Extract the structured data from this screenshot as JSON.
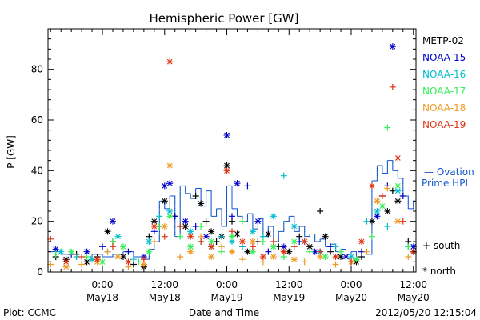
{
  "chart_data": {
    "type": "scatter",
    "title": "Hemispheric Power [GW]",
    "xlabel": "Date and Time",
    "ylabel": "P [GW]",
    "ylim": [
      0,
      96
    ],
    "xlim_hours": [
      -10.5,
      60.5
    ],
    "yticks": [
      0,
      20,
      40,
      60,
      80
    ],
    "xticks": [
      {
        "hour": 0,
        "top": "0:00",
        "bottom": "May18"
      },
      {
        "hour": 12,
        "top": "12:00",
        "bottom": "May18"
      },
      {
        "hour": 24,
        "top": "0:00",
        "bottom": "May19"
      },
      {
        "hour": 36,
        "top": "12:00",
        "bottom": "May19"
      },
      {
        "hour": 48,
        "top": "0:00",
        "bottom": "May20"
      },
      {
        "hour": 60,
        "top": "12:00",
        "bottom": "May20"
      }
    ],
    "footer_left": "Plot: CCMC",
    "footer_right": "2012/05/20 12:15:04",
    "marker_legend": {
      "south": "+ south",
      "north": "* north"
    },
    "series": [
      {
        "name": "METP-02",
        "color": "#000000",
        "points": [
          [
            -9,
            6,
            "+"
          ],
          [
            -7,
            5,
            "*"
          ],
          [
            -5,
            7,
            "+"
          ],
          [
            -3,
            4,
            "*"
          ],
          [
            -1,
            6,
            "+"
          ],
          [
            1,
            16,
            "*"
          ],
          [
            2,
            12,
            "+"
          ],
          [
            4,
            6,
            "*"
          ],
          [
            6,
            3,
            "+"
          ],
          [
            8,
            2,
            "*"
          ],
          [
            9,
            14,
            "+"
          ],
          [
            10,
            20,
            "*"
          ],
          [
            11,
            18,
            "+"
          ],
          [
            12,
            28,
            "*"
          ],
          [
            14,
            22,
            "+"
          ],
          [
            16,
            18,
            "*"
          ],
          [
            18,
            30,
            "+"
          ],
          [
            19,
            27,
            "*"
          ],
          [
            20,
            20,
            "+"
          ],
          [
            21,
            16,
            "*"
          ],
          [
            22,
            12,
            "+"
          ],
          [
            23,
            14,
            "*"
          ],
          [
            24,
            42,
            "*"
          ],
          [
            25,
            20,
            "+"
          ],
          [
            26,
            15,
            "*"
          ],
          [
            27,
            10,
            "+"
          ],
          [
            28,
            8,
            "*"
          ],
          [
            30,
            12,
            "+"
          ],
          [
            32,
            15,
            "*"
          ],
          [
            34,
            10,
            "+"
          ],
          [
            36,
            8,
            "*"
          ],
          [
            38,
            14,
            "+"
          ],
          [
            40,
            10,
            "*"
          ],
          [
            42,
            24,
            "+"
          ],
          [
            43,
            14,
            "*"
          ],
          [
            44,
            8,
            "+"
          ],
          [
            46,
            6,
            "*"
          ],
          [
            48,
            4,
            "+"
          ],
          [
            49,
            4,
            "*"
          ],
          [
            50,
            6,
            "+"
          ],
          [
            52,
            20,
            "*"
          ],
          [
            54,
            30,
            "+"
          ],
          [
            55,
            24,
            "*"
          ],
          [
            56,
            32,
            "+"
          ],
          [
            57,
            28,
            "*"
          ],
          [
            59,
            12,
            "+"
          ],
          [
            60,
            8,
            "*"
          ]
        ]
      },
      {
        "name": "NOAA-15",
        "color": "#0000cc",
        "points": [
          [
            -9,
            9,
            "*"
          ],
          [
            -6,
            7,
            "+"
          ],
          [
            -3,
            8,
            "*"
          ],
          [
            0,
            10,
            "+"
          ],
          [
            2,
            20,
            "*"
          ],
          [
            5,
            8,
            "+"
          ],
          [
            8,
            6,
            "*"
          ],
          [
            10,
            16,
            "+"
          ],
          [
            12,
            34,
            "*"
          ],
          [
            13,
            35,
            "*"
          ],
          [
            14,
            22,
            "+"
          ],
          [
            16,
            20,
            "*"
          ],
          [
            18,
            18,
            "+"
          ],
          [
            20,
            14,
            "*"
          ],
          [
            24,
            54,
            "*"
          ],
          [
            25,
            22,
            "+"
          ],
          [
            26,
            35,
            "*"
          ],
          [
            28,
            34,
            "+"
          ],
          [
            30,
            20,
            "*"
          ],
          [
            32,
            8,
            "+"
          ],
          [
            35,
            10,
            "*"
          ],
          [
            38,
            12,
            "+"
          ],
          [
            41,
            8,
            "*"
          ],
          [
            44,
            10,
            "+"
          ],
          [
            47,
            6,
            "*"
          ],
          [
            50,
            8,
            "+"
          ],
          [
            53,
            22,
            "*"
          ],
          [
            55,
            34,
            "+"
          ],
          [
            56,
            89,
            "*"
          ],
          [
            58,
            30,
            "+"
          ],
          [
            60,
            10,
            "*"
          ]
        ]
      },
      {
        "name": "NOAA-16",
        "color": "#00bbcc",
        "points": [
          [
            -8,
            8,
            "*"
          ],
          [
            -5,
            6,
            "+"
          ],
          [
            -2,
            5,
            "*"
          ],
          [
            1,
            8,
            "+"
          ],
          [
            3,
            14,
            "*"
          ],
          [
            6,
            5,
            "+"
          ],
          [
            9,
            12,
            "*"
          ],
          [
            11,
            22,
            "+"
          ],
          [
            13,
            24,
            "*"
          ],
          [
            15,
            18,
            "+"
          ],
          [
            17,
            16,
            "*"
          ],
          [
            19,
            12,
            "+"
          ],
          [
            21,
            10,
            "*"
          ],
          [
            23,
            14,
            "+"
          ],
          [
            25,
            12,
            "*"
          ],
          [
            27,
            10,
            "+"
          ],
          [
            29,
            16,
            "*"
          ],
          [
            31,
            14,
            "+"
          ],
          [
            33,
            22,
            "*"
          ],
          [
            35,
            38,
            "+"
          ],
          [
            37,
            18,
            "*"
          ],
          [
            39,
            12,
            "+"
          ],
          [
            42,
            8,
            "*"
          ],
          [
            45,
            10,
            "+"
          ],
          [
            48,
            6,
            "*"
          ],
          [
            51,
            20,
            "+"
          ],
          [
            53,
            24,
            "*"
          ],
          [
            55,
            18,
            "+"
          ],
          [
            57,
            32,
            "*"
          ],
          [
            59,
            10,
            "+"
          ]
        ]
      },
      {
        "name": "NOAA-17",
        "color": "#33ee55",
        "points": [
          [
            -9,
            7,
            "+"
          ],
          [
            -6,
            8,
            "*"
          ],
          [
            -3,
            6,
            "+"
          ],
          [
            0,
            4,
            "*"
          ],
          [
            2,
            12,
            "+"
          ],
          [
            4,
            10,
            "*"
          ],
          [
            7,
            4,
            "+"
          ],
          [
            9,
            8,
            "*"
          ],
          [
            11,
            18,
            "+"
          ],
          [
            13,
            22,
            "*"
          ],
          [
            15,
            14,
            "+"
          ],
          [
            17,
            10,
            "*"
          ],
          [
            19,
            18,
            "+"
          ],
          [
            21,
            12,
            "*"
          ],
          [
            23,
            8,
            "+"
          ],
          [
            25,
            14,
            "*"
          ],
          [
            27,
            20,
            "+"
          ],
          [
            29,
            8,
            "*"
          ],
          [
            31,
            12,
            "+"
          ],
          [
            33,
            10,
            "*"
          ],
          [
            35,
            6,
            "+"
          ],
          [
            37,
            12,
            "*"
          ],
          [
            40,
            8,
            "+"
          ],
          [
            43,
            6,
            "*"
          ],
          [
            46,
            8,
            "+"
          ],
          [
            49,
            5,
            "*"
          ],
          [
            52,
            14,
            "+"
          ],
          [
            54,
            26,
            "*"
          ],
          [
            55,
            57,
            "+"
          ],
          [
            57,
            34,
            "*"
          ],
          [
            59,
            10,
            "+"
          ]
        ]
      },
      {
        "name": "NOAA-18",
        "color": "#ee9922",
        "points": [
          [
            -10,
            3,
            "+"
          ],
          [
            -7,
            2,
            "*"
          ],
          [
            -4,
            3,
            "+"
          ],
          [
            -1,
            4,
            "*"
          ],
          [
            1,
            8,
            "+"
          ],
          [
            3,
            6,
            "*"
          ],
          [
            5,
            2,
            "+"
          ],
          [
            8,
            3,
            "*"
          ],
          [
            10,
            12,
            "+"
          ],
          [
            12,
            18,
            "*"
          ],
          [
            13,
            42,
            "*"
          ],
          [
            15,
            6,
            "+"
          ],
          [
            17,
            8,
            "*"
          ],
          [
            19,
            14,
            "+"
          ],
          [
            21,
            6,
            "*"
          ],
          [
            23,
            10,
            "+"
          ],
          [
            25,
            8,
            "*"
          ],
          [
            27,
            5,
            "+"
          ],
          [
            29,
            12,
            "*"
          ],
          [
            31,
            4,
            "+"
          ],
          [
            33,
            6,
            "*"
          ],
          [
            35,
            8,
            "+"
          ],
          [
            37,
            5,
            "*"
          ],
          [
            39,
            4,
            "+"
          ],
          [
            42,
            6,
            "*"
          ],
          [
            45,
            3,
            "+"
          ],
          [
            48,
            4,
            "*"
          ],
          [
            51,
            8,
            "+"
          ],
          [
            53,
            28,
            "*"
          ],
          [
            55,
            33,
            "+"
          ],
          [
            57,
            20,
            "*"
          ],
          [
            59,
            6,
            "+"
          ]
        ]
      },
      {
        "name": "NOAA-19",
        "color": "#dd3311",
        "points": [
          [
            -10,
            13,
            "+"
          ],
          [
            -7,
            4,
            "*"
          ],
          [
            -4,
            6,
            "+"
          ],
          [
            -1,
            5,
            "*"
          ],
          [
            2,
            10,
            "+"
          ],
          [
            5,
            4,
            "*"
          ],
          [
            8,
            5,
            "+"
          ],
          [
            10,
            18,
            "*"
          ],
          [
            12,
            14,
            "+"
          ],
          [
            13,
            83,
            "*"
          ],
          [
            15,
            18,
            "+"
          ],
          [
            17,
            14,
            "*"
          ],
          [
            19,
            12,
            "+"
          ],
          [
            21,
            10,
            "*"
          ],
          [
            24,
            40,
            "*"
          ],
          [
            25,
            16,
            "+"
          ],
          [
            27,
            12,
            "*"
          ],
          [
            29,
            10,
            "+"
          ],
          [
            31,
            6,
            "*"
          ],
          [
            33,
            12,
            "+"
          ],
          [
            35,
            8,
            "*"
          ],
          [
            37,
            10,
            "+"
          ],
          [
            39,
            12,
            "*"
          ],
          [
            42,
            8,
            "+"
          ],
          [
            45,
            6,
            "*"
          ],
          [
            48,
            4,
            "+"
          ],
          [
            50,
            12,
            "*"
          ],
          [
            52,
            34,
            "*"
          ],
          [
            54,
            30,
            "+"
          ],
          [
            56,
            73,
            "+"
          ],
          [
            57,
            45,
            "*"
          ],
          [
            58,
            20,
            "+"
          ],
          [
            60,
            8,
            "*"
          ]
        ]
      }
    ],
    "ovation": {
      "name": "— Ovation Prime HPI",
      "color": "#1155cc",
      "steps": [
        [
          -10.5,
          8
        ],
        [
          -8,
          7
        ],
        [
          -5,
          6
        ],
        [
          -2,
          7
        ],
        [
          0,
          6
        ],
        [
          2,
          7
        ],
        [
          4,
          8
        ],
        [
          6,
          6
        ],
        [
          8,
          5
        ],
        [
          9,
          9
        ],
        [
          10,
          12
        ],
        [
          11,
          28
        ],
        [
          12,
          25
        ],
        [
          13,
          30
        ],
        [
          14,
          14
        ],
        [
          15,
          34
        ],
        [
          16,
          31
        ],
        [
          17,
          29
        ],
        [
          18,
          33
        ],
        [
          19,
          26
        ],
        [
          20,
          32
        ],
        [
          21,
          22
        ],
        [
          22,
          25
        ],
        [
          23,
          18
        ],
        [
          24,
          34
        ],
        [
          25,
          25
        ],
        [
          26,
          22
        ],
        [
          27,
          20
        ],
        [
          28,
          23
        ],
        [
          29,
          17
        ],
        [
          30,
          21
        ],
        [
          31,
          14
        ],
        [
          32,
          18
        ],
        [
          33,
          12
        ],
        [
          34,
          16
        ],
        [
          35,
          20
        ],
        [
          36,
          22
        ],
        [
          37,
          16
        ],
        [
          38,
          18
        ],
        [
          39,
          14
        ],
        [
          40,
          15
        ],
        [
          41,
          12
        ],
        [
          42,
          13
        ],
        [
          43,
          10
        ],
        [
          44,
          11
        ],
        [
          45,
          8
        ],
        [
          46,
          9
        ],
        [
          47,
          7
        ],
        [
          48,
          8
        ],
        [
          49,
          6
        ],
        [
          50,
          8
        ],
        [
          51,
          7
        ],
        [
          52,
          36
        ],
        [
          53,
          42
        ],
        [
          54,
          39
        ],
        [
          55,
          44
        ],
        [
          56,
          40
        ],
        [
          57,
          37
        ],
        [
          58,
          30
        ],
        [
          59,
          25
        ],
        [
          60,
          28
        ],
        [
          60.5,
          28
        ]
      ]
    }
  }
}
